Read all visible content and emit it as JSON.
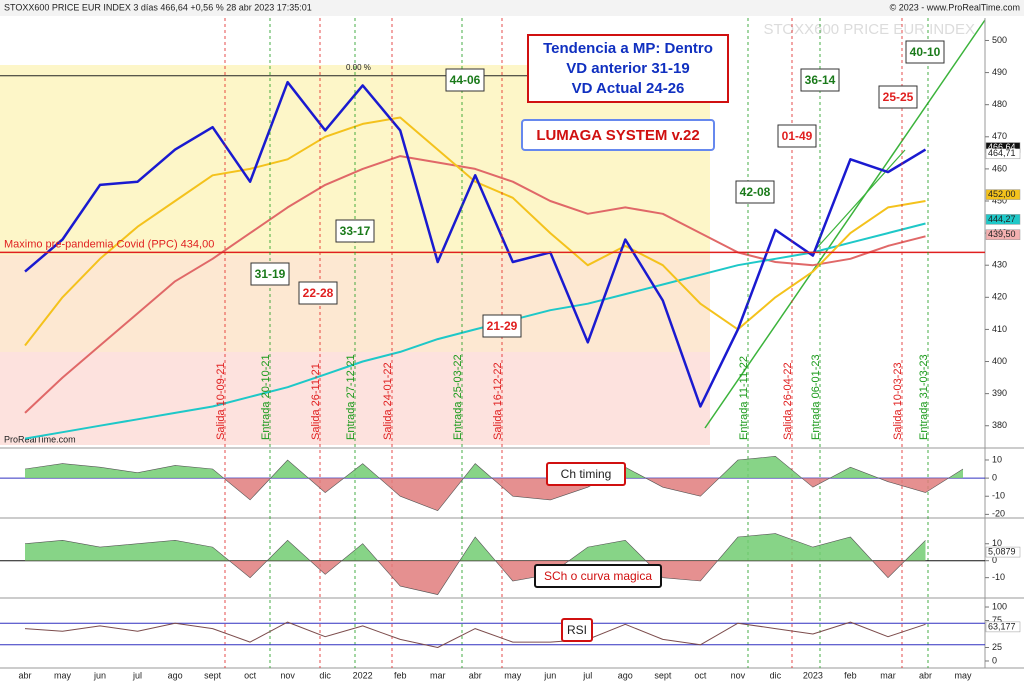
{
  "header": {
    "left": "STOXX600 PRICE EUR INDEX 3 días 466,64 +0,56 % 28 abr 2023 17:35:01",
    "right": "© 2023 - www.ProRealTime.com"
  },
  "watermark": "STOXX600 PRICE EUR INDEX",
  "footer_brand": "ProRealTime.com",
  "chart_data": [
    {
      "type": "line",
      "categories": [
        "abr",
        "may",
        "jun",
        "jul",
        "ago",
        "sept",
        "oct",
        "nov",
        "dic",
        "2022",
        "feb",
        "mar",
        "abr",
        "may",
        "jun",
        "jul",
        "ago",
        "sept",
        "oct",
        "nov",
        "dic",
        "2023",
        "feb",
        "mar",
        "abr",
        "may"
      ],
      "series": [
        {
          "color": "#e06868",
          "values": [
            384,
            395,
            405,
            415,
            425,
            432,
            440,
            448,
            455,
            460,
            464,
            462,
            460,
            456,
            450,
            446,
            448,
            446,
            440,
            434,
            431,
            430,
            432,
            436,
            439,
            null
          ]
        },
        {
          "color": "#1ec8c8",
          "values": [
            376,
            378,
            380,
            382,
            384,
            386,
            389,
            392,
            396,
            400,
            403,
            407,
            410,
            413,
            416,
            418,
            421,
            424,
            427,
            430,
            432,
            434,
            437,
            440,
            443,
            null
          ]
        },
        {
          "color": "#f4c21c",
          "values": [
            405,
            420,
            432,
            442,
            450,
            458,
            460,
            463,
            470,
            474,
            476,
            466,
            456,
            451,
            440,
            430,
            436,
            430,
            418,
            410,
            420,
            428,
            440,
            448,
            450,
            null
          ]
        },
        {
          "color": "#1a1ad0",
          "values": [
            428,
            438,
            455,
            456,
            466,
            473,
            456,
            487,
            472,
            486,
            472,
            431,
            458,
            431,
            434,
            406,
            438,
            419,
            386,
            410,
            441,
            433,
            463,
            459,
            466,
            null
          ]
        }
      ],
      "ylim": [
        374,
        507
      ],
      "yticks": [
        380,
        390,
        400,
        410,
        420,
        430,
        440,
        450,
        460,
        470,
        480,
        490,
        500
      ],
      "reference_lines": [
        {
          "value": 434,
          "label": "Maximo pre-pandemia Covid (PPC)  434,00",
          "color": "#e02020"
        },
        {
          "value": 489,
          "label": "0.00 %",
          "color": "#222222"
        }
      ],
      "value_labels": [
        {
          "value": 466.64,
          "label": "466,64",
          "color": "#111111"
        },
        {
          "value": 464.71,
          "label": "464,71",
          "color": "#ffffff"
        },
        {
          "value": 452,
          "label": "452,00",
          "color": "#f4c21c"
        },
        {
          "value": 444.27,
          "label": "444,27",
          "color": "#1ec8c8"
        },
        {
          "value": 439.5,
          "label": "439,50",
          "color": "#f4b0b0"
        }
      ],
      "info_box": {
        "lines": [
          "Tendencia a MP: Dentro",
          "VD anterior 31-19",
          "VD Actual 24-26"
        ],
        "color": "#1030c0",
        "border": "#d01010"
      },
      "system_label": {
        "text": "LUMAGA SYSTEM v.22",
        "color": "#d01010",
        "border": "#6688ee"
      },
      "annotations": [
        {
          "text": "31-19",
          "color": "#1a7a1a"
        },
        {
          "text": "33-17",
          "color": "#1a7a1a"
        },
        {
          "text": "44-06",
          "color": "#1a7a1a"
        },
        {
          "text": "42-08",
          "color": "#1a7a1a"
        },
        {
          "text": "36-14",
          "color": "#1a7a1a"
        },
        {
          "text": "40-10",
          "color": "#1a7a1a"
        },
        {
          "text": "22-28",
          "color": "#e02020"
        },
        {
          "text": "21-29",
          "color": "#e02020"
        },
        {
          "text": "01-49",
          "color": "#e02020"
        },
        {
          "text": "25-25",
          "color": "#e02020"
        }
      ],
      "signals": [
        {
          "label": "Salida 10-09-21",
          "color": "#e02020"
        },
        {
          "label": "Entrada 20-10-21",
          "color": "#1a9a1a"
        },
        {
          "label": "Salida 26-11-21",
          "color": "#e02020"
        },
        {
          "label": "Entrada 27-12-21",
          "color": "#1a9a1a"
        },
        {
          "label": "Salida 24-01-22",
          "color": "#e02020"
        },
        {
          "label": "Entrada 25-03-22",
          "color": "#1a9a1a"
        },
        {
          "label": "Salida 16-12-22",
          "color": "#e02020"
        },
        {
          "label": "Entrada 11-11-22",
          "color": "#1a9a1a"
        },
        {
          "label": "Salida 26-04-22",
          "color": "#e02020"
        },
        {
          "label": "Entrada 06-01-23",
          "color": "#1a9a1a"
        },
        {
          "label": "Salida 10-03-23",
          "color": "#e02020"
        },
        {
          "label": "Entrada 31-03-23",
          "color": "#1a9a1a"
        }
      ]
    },
    {
      "type": "area",
      "label": {
        "text": "Ch timing",
        "border": "#d01010"
      },
      "colors": [
        "#72cc72",
        "#e07c7c"
      ],
      "values": [
        5,
        8,
        6,
        3,
        7,
        5,
        -12,
        10,
        -8,
        8,
        -10,
        -18,
        8,
        -10,
        -12,
        -5,
        6,
        -5,
        -10,
        10,
        12,
        -5,
        6,
        -2,
        -8,
        5
      ],
      "ylim": [
        -22,
        15.5
      ],
      "yticks": [
        10,
        0,
        -10,
        -20
      ],
      "hlines": [
        {
          "value": 0,
          "color": "#3030c0"
        }
      ]
    },
    {
      "type": "area",
      "label": {
        "text": "SCh o curva magica",
        "border": "#111111"
      },
      "colors": [
        "#72cc72",
        "#e07c7c"
      ],
      "values": [
        10,
        12,
        8,
        10,
        12,
        8,
        -10,
        12,
        -8,
        10,
        -15,
        -20,
        14,
        -12,
        -8,
        8,
        12,
        -10,
        -12,
        14,
        16,
        8,
        14,
        -10,
        12,
        null
      ],
      "ylim": [
        -22,
        24
      ],
      "yticks": [
        10,
        0,
        -10
      ],
      "hlines": [
        {
          "value": 0,
          "color": "#111111"
        }
      ],
      "value_labels": [
        {
          "value": 5.0879,
          "label": "5,0879",
          "color": "#ffffff"
        }
      ]
    },
    {
      "type": "line",
      "label": {
        "text": "RSI",
        "border": "#d01010"
      },
      "colors": [
        "#7c4c4c"
      ],
      "values": [
        60,
        55,
        65,
        55,
        70,
        60,
        35,
        72,
        45,
        65,
        40,
        25,
        60,
        35,
        35,
        40,
        68,
        40,
        30,
        70,
        60,
        50,
        72,
        45,
        68,
        null
      ],
      "ylim": [
        -13,
        113
      ],
      "yticks": [
        100,
        75,
        25,
        0
      ],
      "hlines": [
        {
          "value": 70,
          "color": "#3030c0"
        },
        {
          "value": 30,
          "color": "#3030c0"
        }
      ],
      "value_labels": [
        {
          "value": 63.177,
          "label": "63,177",
          "color": "#ffffff"
        }
      ]
    }
  ]
}
